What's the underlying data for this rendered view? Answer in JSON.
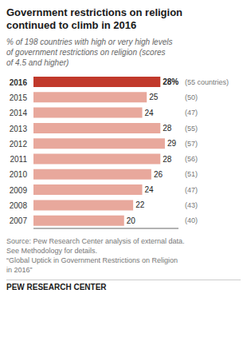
{
  "chart_data": {
    "type": "bar",
    "orientation": "horizontal",
    "title": "Government restrictions on religion\ncontinued to climb in 2016",
    "subtitle": "% of 198 countries with high or very high levels\nof government restrictions on religion (scores\nof 4.5 and higher)",
    "annotations": [
      "Source: Pew Research Center analysis of external data.\nSee Methodology for details.\n“Global Uptick in Government Restrictions on Religion\nin 2016”",
      "PEW RESEARCH CENTER"
    ],
    "categories": [
      "2016",
      "2015",
      "2014",
      "2013",
      "2012",
      "2011",
      "2010",
      "2009",
      "2008",
      "2007"
    ],
    "values": [
      28,
      25,
      24,
      28,
      29,
      28,
      26,
      24,
      22,
      20
    ],
    "value_labels": [
      "28%",
      "25",
      "24",
      "28",
      "29",
      "28",
      "26",
      "24",
      "22",
      "20"
    ],
    "data_labels": true,
    "colors": [
      "#c1392b",
      "#e8a89c",
      "#e8a89c",
      "#e8a89c",
      "#e8a89c",
      "#e8a89c",
      "#e8a89c",
      "#e8a89c",
      "#e8a89c",
      "#e8a89c"
    ],
    "country_labels": [
      "(55 countries)",
      "(50)",
      "(47)",
      "(55)",
      "(57)",
      "(56)",
      "(51)",
      "(47)",
      "(43)",
      "(40)"
    ],
    "xlim": [
      0,
      32
    ],
    "grid": false,
    "tick_labels": "y"
  }
}
